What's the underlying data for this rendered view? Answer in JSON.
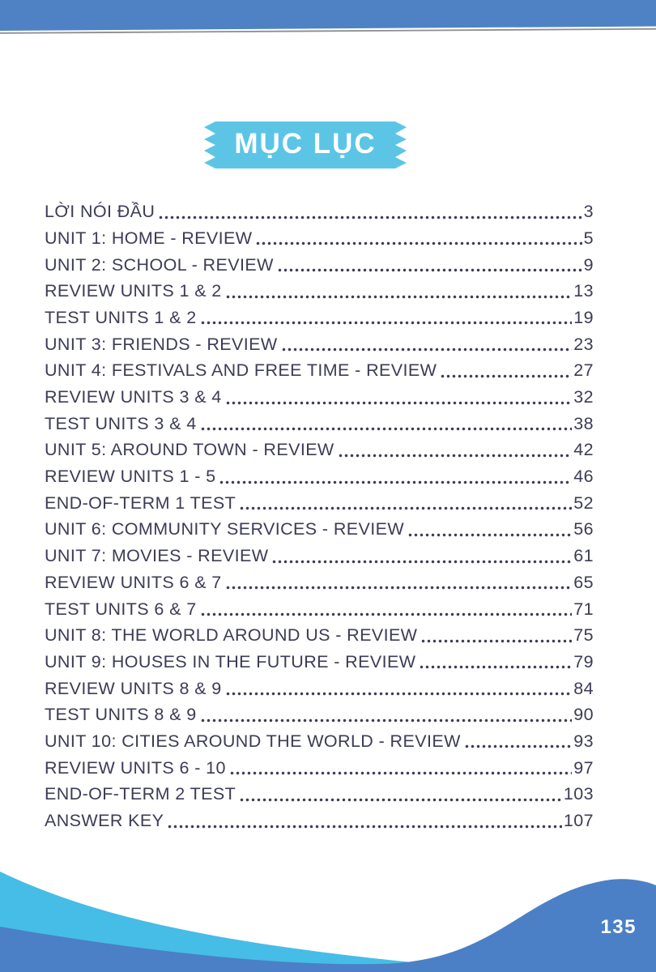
{
  "banner": {
    "title": "MỤC LỤC"
  },
  "toc": {
    "entries": [
      {
        "title": "LỜI NÓI ĐẦU",
        "page": "3"
      },
      {
        "title": "UNIT 1: HOME - REVIEW",
        "page": "5"
      },
      {
        "title": "UNIT 2: SCHOOL - REVIEW",
        "page": "9"
      },
      {
        "title": "REVIEW UNITS 1 & 2",
        "page": "13"
      },
      {
        "title": "TEST UNITS 1 & 2",
        "page": "19"
      },
      {
        "title": "UNIT 3: FRIENDS - REVIEW",
        "page": "23"
      },
      {
        "title": "UNIT 4: FESTIVALS AND FREE TIME - REVIEW",
        "page": "27"
      },
      {
        "title": "REVIEW UNITS 3 & 4",
        "page": "32"
      },
      {
        "title": "TEST UNITS 3 & 4",
        "page": "38"
      },
      {
        "title": "UNIT 5: AROUND TOWN - REVIEW",
        "page": "42"
      },
      {
        "title": "REVIEW UNITS 1 - 5",
        "page": "46"
      },
      {
        "title": "END-OF-TERM 1 TEST",
        "page": "52"
      },
      {
        "title": "UNIT 6: COMMUNITY SERVICES - REVIEW",
        "page": "56"
      },
      {
        "title": "UNIT 7: MOVIES - REVIEW",
        "page": "61"
      },
      {
        "title": "REVIEW UNITS 6 & 7",
        "page": "65"
      },
      {
        "title": "TEST UNITS 6 & 7",
        "page": "71"
      },
      {
        "title": "UNIT 8: THE WORLD AROUND US - REVIEW",
        "page": "75"
      },
      {
        "title": "UNIT 9: HOUSES IN THE FUTURE - REVIEW",
        "page": "79"
      },
      {
        "title": "REVIEW UNITS 8 & 9",
        "page": "84"
      },
      {
        "title": "TEST UNITS 8 & 9",
        "page": "90"
      },
      {
        "title": "UNIT 10: CITIES AROUND THE WORLD - REVIEW",
        "page": "93"
      },
      {
        "title": "REVIEW UNITS 6 - 10",
        "page": "97"
      },
      {
        "title": "END-OF-TERM 2 TEST",
        "page": "103"
      },
      {
        "title": "ANSWER KEY",
        "page": "107"
      }
    ]
  },
  "footer": {
    "page_number": "135"
  },
  "colors": {
    "top_bar_blue": "#4f81c5",
    "ribbon_cyan": "#5cc5e6",
    "wave_cyan": "#46bde6",
    "wave_blue": "#4b80c6",
    "text": "#3c3c55",
    "underline_gray": "#8d8d8d"
  }
}
